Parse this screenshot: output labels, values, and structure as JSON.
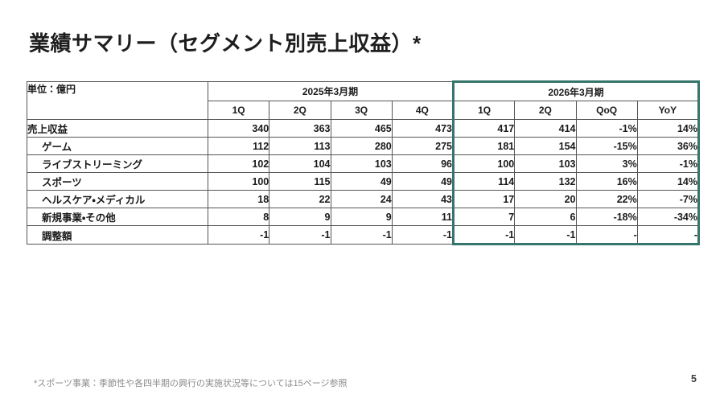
{
  "slide": {
    "title": "業績サマリー（セグメント別売上収益）*",
    "footnote": "*スポーツ事業：季節性や各四半期の興行の実施状況等については15ページ参照",
    "page_number": "5"
  },
  "table": {
    "unit_label": "単位：億円",
    "column_groups": [
      {
        "label": "2025年3月期",
        "columns": [
          "1Q",
          "2Q",
          "3Q",
          "4Q"
        ],
        "highlighted": false
      },
      {
        "label": "2026年3月期",
        "columns": [
          "1Q",
          "2Q",
          "QoQ",
          "YoY"
        ],
        "highlighted": true
      }
    ],
    "rows": [
      {
        "label": "売上収益",
        "indent": false,
        "values": [
          "340",
          "363",
          "465",
          "473",
          "417",
          "414",
          "-1%",
          "14%"
        ]
      },
      {
        "label": "ゲーム",
        "indent": true,
        "values": [
          "112",
          "113",
          "280",
          "275",
          "181",
          "154",
          "-15%",
          "36%"
        ]
      },
      {
        "label": "ライブストリーミング",
        "indent": true,
        "values": [
          "102",
          "104",
          "103",
          "96",
          "100",
          "103",
          "3%",
          "-1%"
        ]
      },
      {
        "label": "スポーツ",
        "indent": true,
        "values": [
          "100",
          "115",
          "49",
          "49",
          "114",
          "132",
          "16%",
          "14%"
        ]
      },
      {
        "label": "ヘルスケア・メディカル",
        "indent": true,
        "values": [
          "18",
          "22",
          "24",
          "43",
          "17",
          "20",
          "22%",
          "-7%"
        ]
      },
      {
        "label": "新規事業・その他",
        "indent": true,
        "values": [
          "8",
          "9",
          "9",
          "11",
          "7",
          "6",
          "-18%",
          "-34%"
        ]
      },
      {
        "label": "調整額",
        "indent": true,
        "values": [
          "-1",
          "-1",
          "-1",
          "-1",
          "-1",
          "-1",
          "-",
          "-"
        ]
      }
    ]
  },
  "colors": {
    "accent_text": "#275a51",
    "highlight_border": "#35756b",
    "grid_line": "#555555"
  }
}
